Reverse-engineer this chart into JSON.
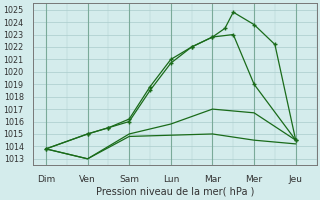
{
  "xlabel": "Pression niveau de la mer( hPa )",
  "background_color": "#d4ecec",
  "grid_color": "#aacccc",
  "line_color": "#1a6b1a",
  "x_labels": [
    "Dim",
    "Ven",
    "Sam",
    "Lun",
    "Mar",
    "Mer",
    "Jeu"
  ],
  "ylim": [
    1012.5,
    1025.5
  ],
  "yticks": [
    1013,
    1014,
    1015,
    1016,
    1017,
    1018,
    1019,
    1020,
    1021,
    1022,
    1023,
    1024,
    1025
  ],
  "x_positions": [
    0,
    1,
    2,
    3,
    4,
    5,
    6
  ],
  "line1_x": [
    0,
    1,
    2,
    3,
    4,
    5,
    6
  ],
  "line1_y": [
    1013.8,
    1013.0,
    1014.8,
    1014.9,
    1015.0,
    1014.5,
    1014.2
  ],
  "line2_x": [
    0,
    1,
    2,
    3,
    4,
    5,
    6
  ],
  "line2_y": [
    1013.8,
    1013.0,
    1015.0,
    1015.8,
    1017.0,
    1016.7,
    1014.5
  ],
  "line3_x": [
    0,
    1,
    1.5,
    2,
    2.5,
    3,
    3.5,
    4,
    4.5,
    5,
    6
  ],
  "line3_y": [
    1013.8,
    1015.0,
    1015.5,
    1016.0,
    1018.5,
    1020.7,
    1022.0,
    1022.8,
    1023.0,
    1019.0,
    1014.5
  ],
  "line4_x": [
    0,
    1,
    1.5,
    2,
    2.5,
    3,
    3.5,
    4,
    4.3,
    4.5,
    5,
    5.5,
    6
  ],
  "line4_y": [
    1013.8,
    1015.0,
    1015.5,
    1016.2,
    1018.8,
    1021.0,
    1022.0,
    1022.8,
    1023.5,
    1024.8,
    1023.8,
    1022.2,
    1014.5
  ]
}
